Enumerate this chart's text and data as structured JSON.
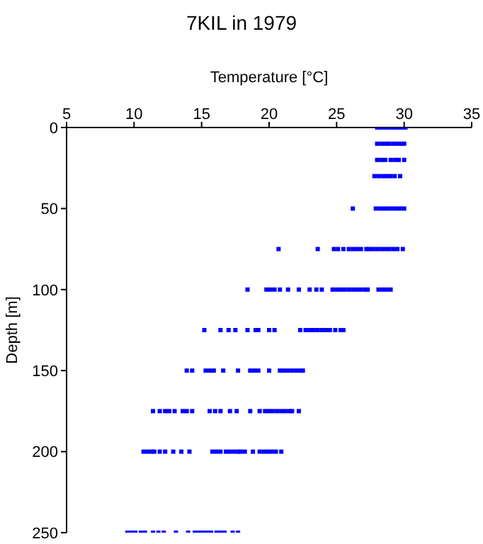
{
  "chart_data": {
    "type": "scatter",
    "title": "7KIL in 1979",
    "xlabel": "Temperature [°C]",
    "ylabel": "Depth [m]",
    "xlim": [
      5,
      35
    ],
    "xticks": [
      5,
      10,
      15,
      20,
      25,
      30,
      35
    ],
    "ylim": [
      250,
      0
    ],
    "yticks": [
      0,
      50,
      100,
      150,
      200,
      250
    ],
    "grid": false,
    "marker": "square",
    "series": [
      {
        "color": "#0000ff",
        "x": [
          28.0,
          28.3,
          28.6,
          28.9,
          29.2,
          29.5,
          29.8,
          30.1,
          28.0,
          28.3,
          28.6,
          28.9,
          29.2,
          29.5,
          29.8,
          30.0,
          28.0,
          28.3,
          28.6,
          29.0,
          29.3,
          29.6,
          30.0,
          27.8,
          28.1,
          28.4,
          28.7,
          29.0,
          29.3,
          29.7,
          26.2,
          27.9,
          28.2,
          28.5,
          28.8,
          29.1,
          29.4,
          29.7,
          30.0,
          20.7,
          23.6,
          24.8,
          25.1,
          25.5,
          25.9,
          26.2,
          26.5,
          26.8,
          27.2,
          27.4,
          27.7,
          28.0,
          28.3,
          28.6,
          28.9,
          29.2,
          29.5,
          29.9,
          18.4,
          19.8,
          20.1,
          20.4,
          20.8,
          21.4,
          22.2,
          23.0,
          23.5,
          23.9,
          24.7,
          25.0,
          25.3,
          25.6,
          25.9,
          26.2,
          26.5,
          26.8,
          27.1,
          27.3,
          28.1,
          28.4,
          28.7,
          29.0,
          15.2,
          16.4,
          17.0,
          17.5,
          18.4,
          19.0,
          19.2,
          20.0,
          20.4,
          22.3,
          22.7,
          23.0,
          23.3,
          23.6,
          23.9,
          24.2,
          24.5,
          24.9,
          25.3,
          25.5,
          13.9,
          14.3,
          15.3,
          15.6,
          15.9,
          16.6,
          17.7,
          18.6,
          18.9,
          19.2,
          20.0,
          20.8,
          21.1,
          21.4,
          21.7,
          22.0,
          22.3,
          22.5,
          11.4,
          11.9,
          12.3,
          12.6,
          13.0,
          13.6,
          13.9,
          14.3,
          15.6,
          16.0,
          16.4,
          17.1,
          17.6,
          18.6,
          19.3,
          19.7,
          20.0,
          20.3,
          20.6,
          20.9,
          21.2,
          21.5,
          21.7,
          22.2,
          10.7,
          11.0,
          11.3,
          11.5,
          11.9,
          12.3,
          12.9,
          13.5,
          14.1,
          15.8,
          16.1,
          16.4,
          16.8,
          17.1,
          17.4,
          17.7,
          17.9,
          18.2,
          18.8,
          19.3,
          19.6,
          19.9,
          20.2,
          20.5,
          20.9,
          9.5,
          9.8,
          10.1,
          10.5,
          10.8,
          11.4,
          11.8,
          12.2,
          13.1,
          14.0,
          14.5,
          14.8,
          15.1,
          15.4,
          15.7,
          16.1,
          16.4,
          16.7,
          17.3,
          17.7
        ],
        "values": [
          0,
          0,
          0,
          0,
          0,
          0,
          0,
          0,
          10,
          10,
          10,
          10,
          10,
          10,
          10,
          10,
          20,
          20,
          20,
          20,
          20,
          20,
          20,
          30,
          30,
          30,
          30,
          30,
          30,
          30,
          50,
          50,
          50,
          50,
          50,
          50,
          50,
          50,
          50,
          75,
          75,
          75,
          75,
          75,
          75,
          75,
          75,
          75,
          75,
          75,
          75,
          75,
          75,
          75,
          75,
          75,
          75,
          75,
          100,
          100,
          100,
          100,
          100,
          100,
          100,
          100,
          100,
          100,
          100,
          100,
          100,
          100,
          100,
          100,
          100,
          100,
          100,
          100,
          100,
          100,
          100,
          100,
          125,
          125,
          125,
          125,
          125,
          125,
          125,
          125,
          125,
          125,
          125,
          125,
          125,
          125,
          125,
          125,
          125,
          125,
          125,
          125,
          150,
          150,
          150,
          150,
          150,
          150,
          150,
          150,
          150,
          150,
          150,
          150,
          150,
          150,
          150,
          150,
          150,
          150,
          175,
          175,
          175,
          175,
          175,
          175,
          175,
          175,
          175,
          175,
          175,
          175,
          175,
          175,
          175,
          175,
          175,
          175,
          175,
          175,
          175,
          175,
          175,
          175,
          200,
          200,
          200,
          200,
          200,
          200,
          200,
          200,
          200,
          200,
          200,
          200,
          200,
          200,
          200,
          200,
          200,
          200,
          200,
          200,
          200,
          200,
          200,
          200,
          200,
          250,
          250,
          250,
          250,
          250,
          250,
          250,
          250,
          250,
          250,
          250,
          250,
          250,
          250,
          250,
          250,
          250,
          250,
          250,
          250
        ]
      }
    ]
  }
}
